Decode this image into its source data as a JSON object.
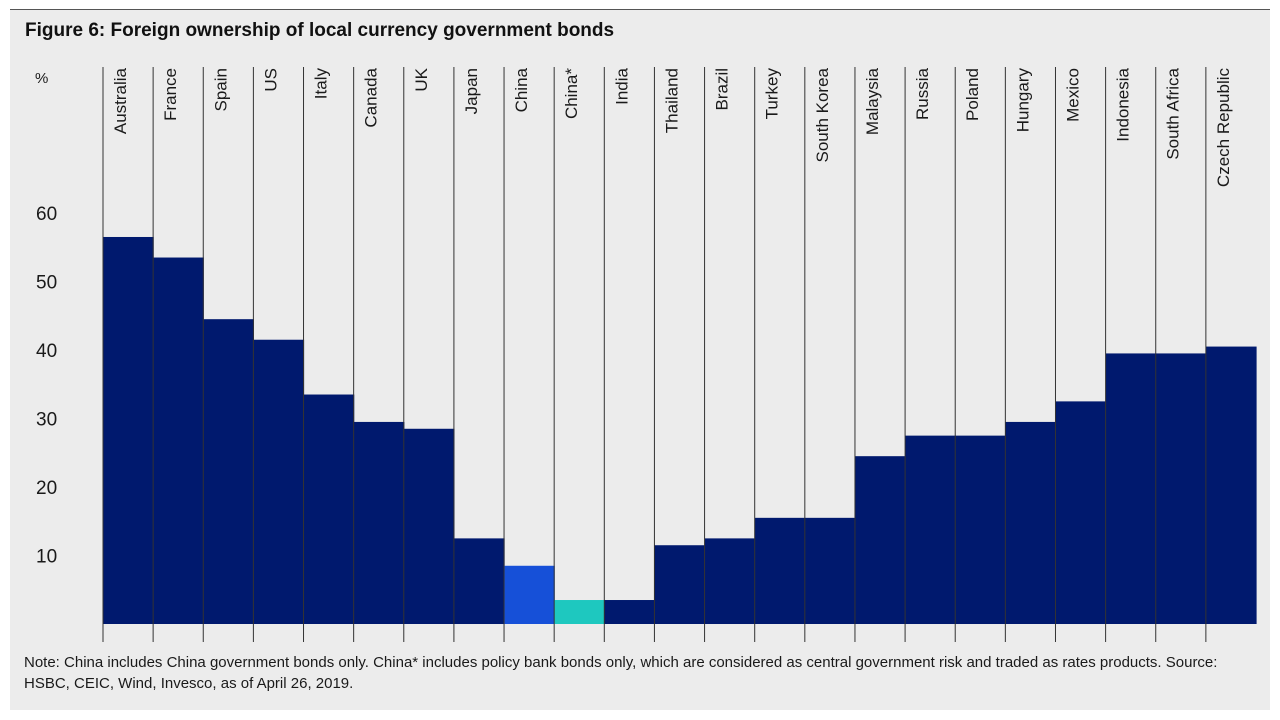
{
  "chart_data": {
    "type": "bar",
    "title": "Figure 6: Foreign ownership of local currency government bonds",
    "ylabel": "%",
    "xlabel": "",
    "ylim": [
      0,
      60
    ],
    "yticks": [
      10,
      20,
      30,
      40,
      50,
      60
    ],
    "categories": [
      "Australia",
      "France",
      "Spain",
      "US",
      "Italy",
      "Canada",
      "UK",
      "Japan",
      "China",
      "China*",
      "India",
      "Thailand",
      "Brazil",
      "Turkey",
      "South Korea",
      "Malaysia",
      "Russia",
      "Poland",
      "Hungary",
      "Mexico",
      "Indonesia",
      "South Africa",
      "Czech Republic"
    ],
    "values": [
      56.5,
      53.5,
      44.5,
      41.5,
      33.5,
      29.5,
      28.5,
      12.5,
      8.5,
      3.5,
      3.5,
      11.5,
      12.5,
      15.5,
      15.5,
      24.5,
      27.5,
      27.5,
      29.5,
      32.5,
      39.5,
      39.5,
      40.5
    ],
    "bar_colors": [
      "#00196e",
      "#00196e",
      "#00196e",
      "#00196e",
      "#00196e",
      "#00196e",
      "#00196e",
      "#00196e",
      "#1650d8",
      "#1ec8bf",
      "#00196e",
      "#00196e",
      "#00196e",
      "#00196e",
      "#00196e",
      "#00196e",
      "#00196e",
      "#00196e",
      "#00196e",
      "#00196e",
      "#00196e",
      "#00196e",
      "#00196e"
    ],
    "grid": false,
    "legend": "none"
  },
  "footnote": "Note: China includes China government bonds only. China* includes policy bank bonds only, which are considered as central government risk and traded as rates products. Source: HSBC, CEIC, Wind, Invesco, as of April 26, 2019.",
  "colors": {
    "background": "#ececec",
    "divider": "#333333",
    "text": "#1a1a1a"
  }
}
